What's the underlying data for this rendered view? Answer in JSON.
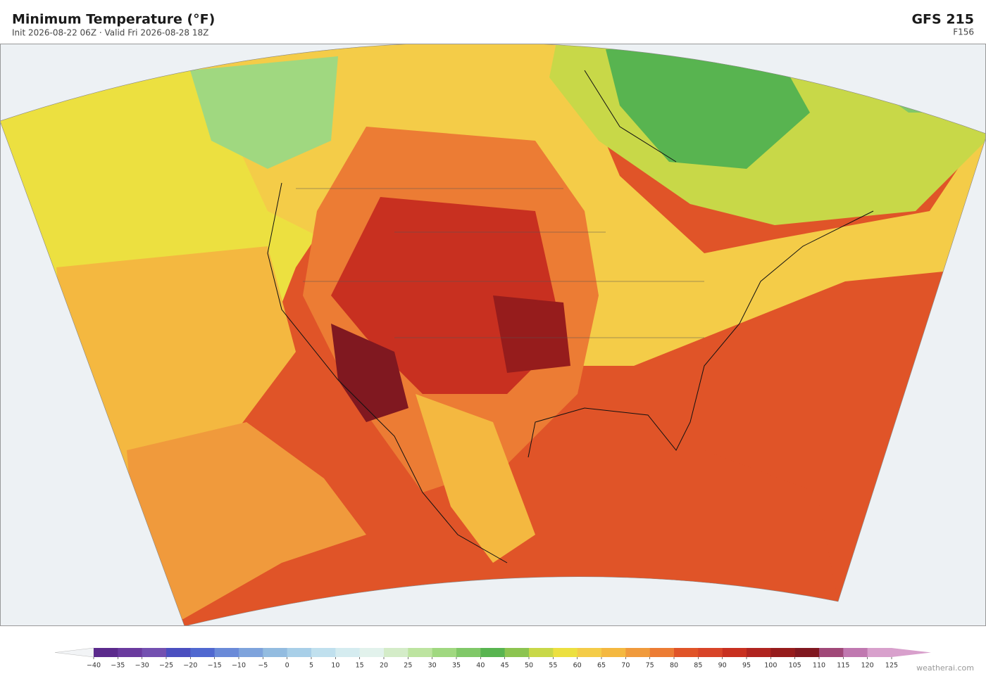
{
  "header": {
    "title": "Minimum Temperature  (°F)",
    "subtitle": "Init 2026-08-22 06Z  ·  Valid Fri 2026-08-28 18Z",
    "model": "GFS  215",
    "forecast_hour": "F156"
  },
  "colorbar": {
    "ticks": [
      {
        "value": -40,
        "label": "−40"
      },
      {
        "value": -35,
        "label": "−35"
      },
      {
        "value": -30,
        "label": "−30"
      },
      {
        "value": -25,
        "label": "−25"
      },
      {
        "value": -20,
        "label": "−20"
      },
      {
        "value": -15,
        "label": "−15"
      },
      {
        "value": -10,
        "label": "−10"
      },
      {
        "value": -5,
        "label": "−5"
      },
      0,
      5,
      10,
      15,
      20,
      25,
      30,
      35,
      40,
      45,
      50,
      55,
      60,
      65,
      70,
      75,
      80,
      85,
      90,
      95,
      100,
      105,
      110,
      115,
      120,
      125
    ],
    "colors": [
      "#5b2a8c",
      "#6a3a9e",
      "#7350b0",
      "#4b4fc0",
      "#5068d0",
      "#6a8ad8",
      "#7ea3dc",
      "#93bce0",
      "#a8cfe8",
      "#c0e0ee",
      "#d5ecf0",
      "#e2f2ec",
      "#d4ecc8",
      "#bde4a0",
      "#a0d880",
      "#80c868",
      "#58b450",
      "#8cc450",
      "#c8d848",
      "#ece040",
      "#f4cc48",
      "#f4b840",
      "#f09a3c",
      "#ec7c34",
      "#e05428",
      "#d84428",
      "#c83020",
      "#b02420",
      "#961c1c",
      "#801820",
      "#a04878",
      "#c078b0",
      "#d8a0cc"
    ],
    "under_color": "#f2f4f6",
    "over_color": "#d8a0cc"
  },
  "footer": {
    "watermark": "weatherai.com"
  }
}
